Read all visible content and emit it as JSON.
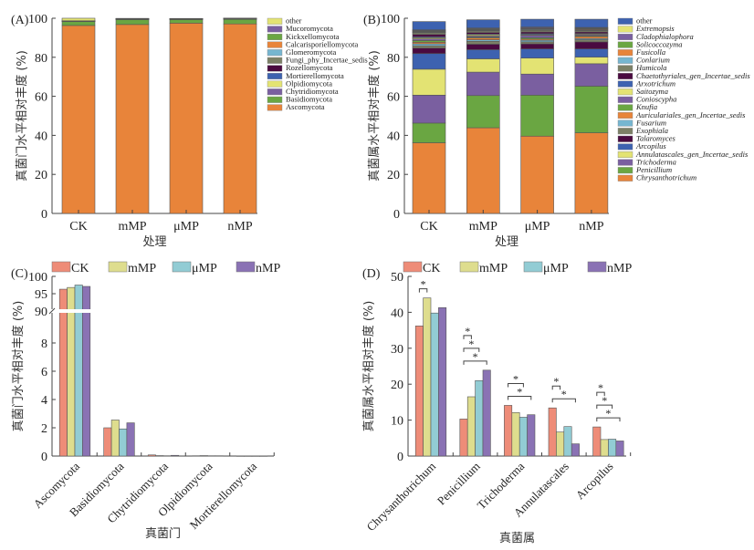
{
  "chart_data": [
    {
      "panel_label": "(A)",
      "type": "bar",
      "stacked": true,
      "categories": [
        "CK",
        "mMP",
        "μMP",
        "nMP"
      ],
      "xlabel": "处理",
      "ylabel": "真菌门水平相对丰度 (%)",
      "ylim": [
        0,
        100
      ],
      "yticks": [
        0,
        20,
        40,
        60,
        80,
        100
      ],
      "legend_position": "right",
      "legend": [
        "other",
        "Mucoromycota",
        "Kickxellomycota",
        "Calcarisporiellomycota",
        "Glomeromycota",
        "Fungi_phy_Incertae_sedis",
        "Rozellomycota",
        "Mortierellomycota",
        "Olpidiomycota",
        "Chytridiomycota",
        "Basidiomycota",
        "Ascomycota"
      ],
      "series": [
        {
          "name": "Ascomycota",
          "color": "#e8843a",
          "values": [
            96.3,
            96.8,
            97.5,
            97.1
          ]
        },
        {
          "name": "Basidiomycota",
          "color": "#6aa642",
          "values": [
            2.0,
            2.6,
            1.9,
            2.4
          ]
        },
        {
          "name": "Chytridiomycota",
          "color": "#7a5fa0",
          "values": [
            0.1,
            0.05,
            0.05,
            0.05
          ]
        },
        {
          "name": "Olpidiomycota",
          "color": "#e3e373",
          "values": [
            0.05,
            0.05,
            0.05,
            0.05
          ]
        },
        {
          "name": "Mortierellomycota",
          "color": "#3d62b0",
          "values": [
            0.05,
            0.05,
            0.05,
            0.05
          ]
        },
        {
          "name": "Rozellomycota",
          "color": "#4a0a40",
          "values": [
            0.05,
            0.1,
            0.1,
            0.25
          ]
        },
        {
          "name": "Fungi_phy_Incertae_sedis",
          "color": "#7c8066",
          "values": [
            0.05,
            0.05,
            0.05,
            0.05
          ]
        },
        {
          "name": "Glomeromycota",
          "color": "#76b6d0",
          "values": [
            0.05,
            0.05,
            0.05,
            0.05
          ]
        },
        {
          "name": "Calcarisporiellomycota",
          "color": "#e8843a",
          "values": [
            0.02,
            0.02,
            0.02,
            0.02
          ]
        },
        {
          "name": "Kickxellomycota",
          "color": "#6aa642",
          "values": [
            0.02,
            0.02,
            0.02,
            0.02
          ]
        },
        {
          "name": "Mucoromycota",
          "color": "#7a5fa0",
          "values": [
            0.02,
            0.02,
            0.02,
            0.02
          ]
        },
        {
          "name": "other",
          "color": "#e3e373",
          "values": [
            1.3,
            0.13,
            0.09,
            0.0
          ]
        }
      ]
    },
    {
      "panel_label": "(B)",
      "type": "bar",
      "stacked": true,
      "categories": [
        "CK",
        "mMP",
        "μMP",
        "nMP"
      ],
      "xlabel": "处理",
      "ylabel": "真菌属水平相对丰度 (%)",
      "ylim": [
        0,
        100
      ],
      "yticks": [
        0,
        20,
        40,
        60,
        80,
        100
      ],
      "legend_position": "right",
      "legend": [
        "other",
        "Extremopsis",
        "Cladophialophora",
        "Solicoccozyma",
        "Fusicolla",
        "Conlarium",
        "Humicola",
        "Chaetothyriales_gen_Incertae_sedis",
        "Arxotrichum",
        "Saitozyma",
        "Conioscypha",
        "Knufia",
        "Auriculariales_gen_Incertae_sedis",
        "Fusarium",
        "Exophiala",
        "Talaromyces",
        "Arcopilus",
        "Annulatascales_gen_Incertae_sedis",
        "Trichoderma",
        "Penicillium",
        "Chrysanthotrichum"
      ],
      "series": [
        {
          "name": "Chrysanthotrichum",
          "color": "#e8843a",
          "values": [
            36.2,
            43.9,
            39.6,
            41.3
          ]
        },
        {
          "name": "Penicillium",
          "color": "#6aa642",
          "values": [
            10.1,
            16.5,
            21.0,
            23.9
          ]
        },
        {
          "name": "Trichoderma",
          "color": "#7a5fa0",
          "values": [
            14.3,
            12.0,
            10.8,
            11.5
          ]
        },
        {
          "name": "Annulatascales_gen_Incertae_sedis",
          "color": "#e3e373",
          "values": [
            13.3,
            6.8,
            8.2,
            3.4
          ]
        },
        {
          "name": "Arcopilus",
          "color": "#3d62b0",
          "values": [
            8.0,
            4.7,
            4.7,
            4.2
          ]
        },
        {
          "name": "Talaromyces",
          "color": "#4a0a40",
          "values": [
            2.8,
            2.8,
            2.6,
            3.6
          ]
        },
        {
          "name": "Exophiala",
          "color": "#7c8066",
          "values": [
            1.2,
            1.5,
            1.0,
            1.1
          ]
        },
        {
          "name": "Fusarium",
          "color": "#76b6d0",
          "values": [
            1.0,
            0.8,
            0.8,
            0.6
          ]
        },
        {
          "name": "Auriculariales_gen_Incertae_sedis",
          "color": "#e8843a",
          "values": [
            0.8,
            0.9,
            0.6,
            1.0
          ]
        },
        {
          "name": "Knufia",
          "color": "#6aa642",
          "values": [
            0.9,
            0.4,
            0.7,
            0.4
          ]
        },
        {
          "name": "Conioscypha",
          "color": "#7a5fa0",
          "values": [
            0.8,
            0.6,
            1.2,
            0.5
          ]
        },
        {
          "name": "Saitozyma",
          "color": "#e3e373",
          "values": [
            0.6,
            0.6,
            0.4,
            0.4
          ]
        },
        {
          "name": "Arxotrichum",
          "color": "#3d62b0",
          "values": [
            0.5,
            0.4,
            0.5,
            0.3
          ]
        },
        {
          "name": "Chaetothyriales_gen_Incertae_sedis",
          "color": "#4a0a40",
          "values": [
            1.2,
            0.8,
            0.9,
            0.8
          ]
        },
        {
          "name": "Humicola",
          "color": "#7c8066",
          "values": [
            0.9,
            0.8,
            0.8,
            0.7
          ]
        },
        {
          "name": "Conlarium",
          "color": "#76b6d0",
          "values": [
            0.3,
            0.3,
            0.4,
            0.3
          ]
        },
        {
          "name": "Fusicolla",
          "color": "#e8843a",
          "values": [
            0.3,
            0.3,
            0.3,
            0.4
          ]
        },
        {
          "name": "Solicoccozyma",
          "color": "#6aa642",
          "values": [
            0.3,
            0.3,
            0.3,
            0.3
          ]
        },
        {
          "name": "Cladophialophora",
          "color": "#7a5fa0",
          "values": [
            0.3,
            0.3,
            0.4,
            0.3
          ]
        },
        {
          "name": "Extremopsis",
          "color": "#e3e373",
          "values": [
            0.3,
            0.3,
            0.3,
            0.3
          ]
        },
        {
          "name": "other",
          "color": "#3d62b0",
          "values": [
            4.2,
            4.2,
            4.0,
            4.2
          ]
        }
      ]
    },
    {
      "panel_label": "(C)",
      "type": "bar",
      "grouped": true,
      "broken_axis": true,
      "categories": [
        "Ascomycota",
        "Basidiomycota",
        "Chytridiomycota",
        "Olpidiomycota",
        "Mortierellomycota"
      ],
      "xlabel": "真菌门",
      "ylabel": "真菌门水平相对丰度 (%)",
      "yticks_lower": [
        0,
        2,
        4,
        6,
        8
      ],
      "yticks_upper": [
        90,
        95,
        100
      ],
      "ylim_lower": [
        0,
        9.5
      ],
      "ylim_upper": [
        90,
        100
      ],
      "legend_position": "top",
      "series": [
        {
          "name": "CK",
          "color": "#ee8c78",
          "values": [
            96.3,
            2.0,
            0.08,
            0.02,
            0.01
          ]
        },
        {
          "name": "mMP",
          "color": "#dedd8e",
          "values": [
            96.8,
            2.55,
            0.03,
            0.03,
            0.01
          ]
        },
        {
          "name": "μMP",
          "color": "#92ccd4",
          "values": [
            97.5,
            1.92,
            0.02,
            0.02,
            0.01
          ]
        },
        {
          "name": "nMP",
          "color": "#8a72b4",
          "values": [
            97.1,
            2.35,
            0.05,
            0.02,
            0.01
          ]
        }
      ]
    },
    {
      "panel_label": "(D)",
      "type": "bar",
      "grouped": true,
      "categories": [
        "Chrysanthotrichum",
        "Penicillium",
        "Trichoderma",
        "Annulatascales",
        "Arcopilus"
      ],
      "xlabel": "真菌属",
      "ylabel": "真菌属水平相对丰度 (%)",
      "ylim": [
        0,
        50
      ],
      "yticks": [
        0,
        10,
        20,
        30,
        40,
        50
      ],
      "legend_position": "top",
      "series": [
        {
          "name": "CK",
          "color": "#ee8c78",
          "values": [
            36.2,
            10.3,
            14.1,
            13.4,
            8.1
          ]
        },
        {
          "name": "mMP",
          "color": "#dedd8e",
          "values": [
            44.0,
            16.5,
            12.1,
            6.7,
            4.6
          ]
        },
        {
          "name": "μMP",
          "color": "#92ccd4",
          "values": [
            39.8,
            21.0,
            10.8,
            8.2,
            4.7
          ]
        },
        {
          "name": "nMP",
          "color": "#8a72b4",
          "values": [
            41.3,
            23.9,
            11.5,
            3.4,
            4.2
          ]
        }
      ],
      "significance": [
        {
          "category": "Chrysanthotrichum",
          "pairs": [
            [
              "CK",
              "mMP"
            ]
          ],
          "label": "*"
        },
        {
          "category": "Penicillium",
          "pairs": [
            [
              "CK",
              "mMP"
            ],
            [
              "CK",
              "μMP"
            ],
            [
              "CK",
              "nMP"
            ]
          ],
          "label": "*"
        },
        {
          "category": "Trichoderma",
          "pairs": [
            [
              "CK",
              "μMP"
            ],
            [
              "CK",
              "nMP"
            ]
          ],
          "label": "*"
        },
        {
          "category": "Annulatascales",
          "pairs": [
            [
              "CK",
              "mMP"
            ],
            [
              "CK",
              "nMP"
            ]
          ],
          "label": "*"
        },
        {
          "category": "Arcopilus",
          "pairs": [
            [
              "CK",
              "mMP"
            ],
            [
              "CK",
              "μMP"
            ],
            [
              "CK",
              "nMP"
            ]
          ],
          "label": "*"
        }
      ]
    }
  ]
}
